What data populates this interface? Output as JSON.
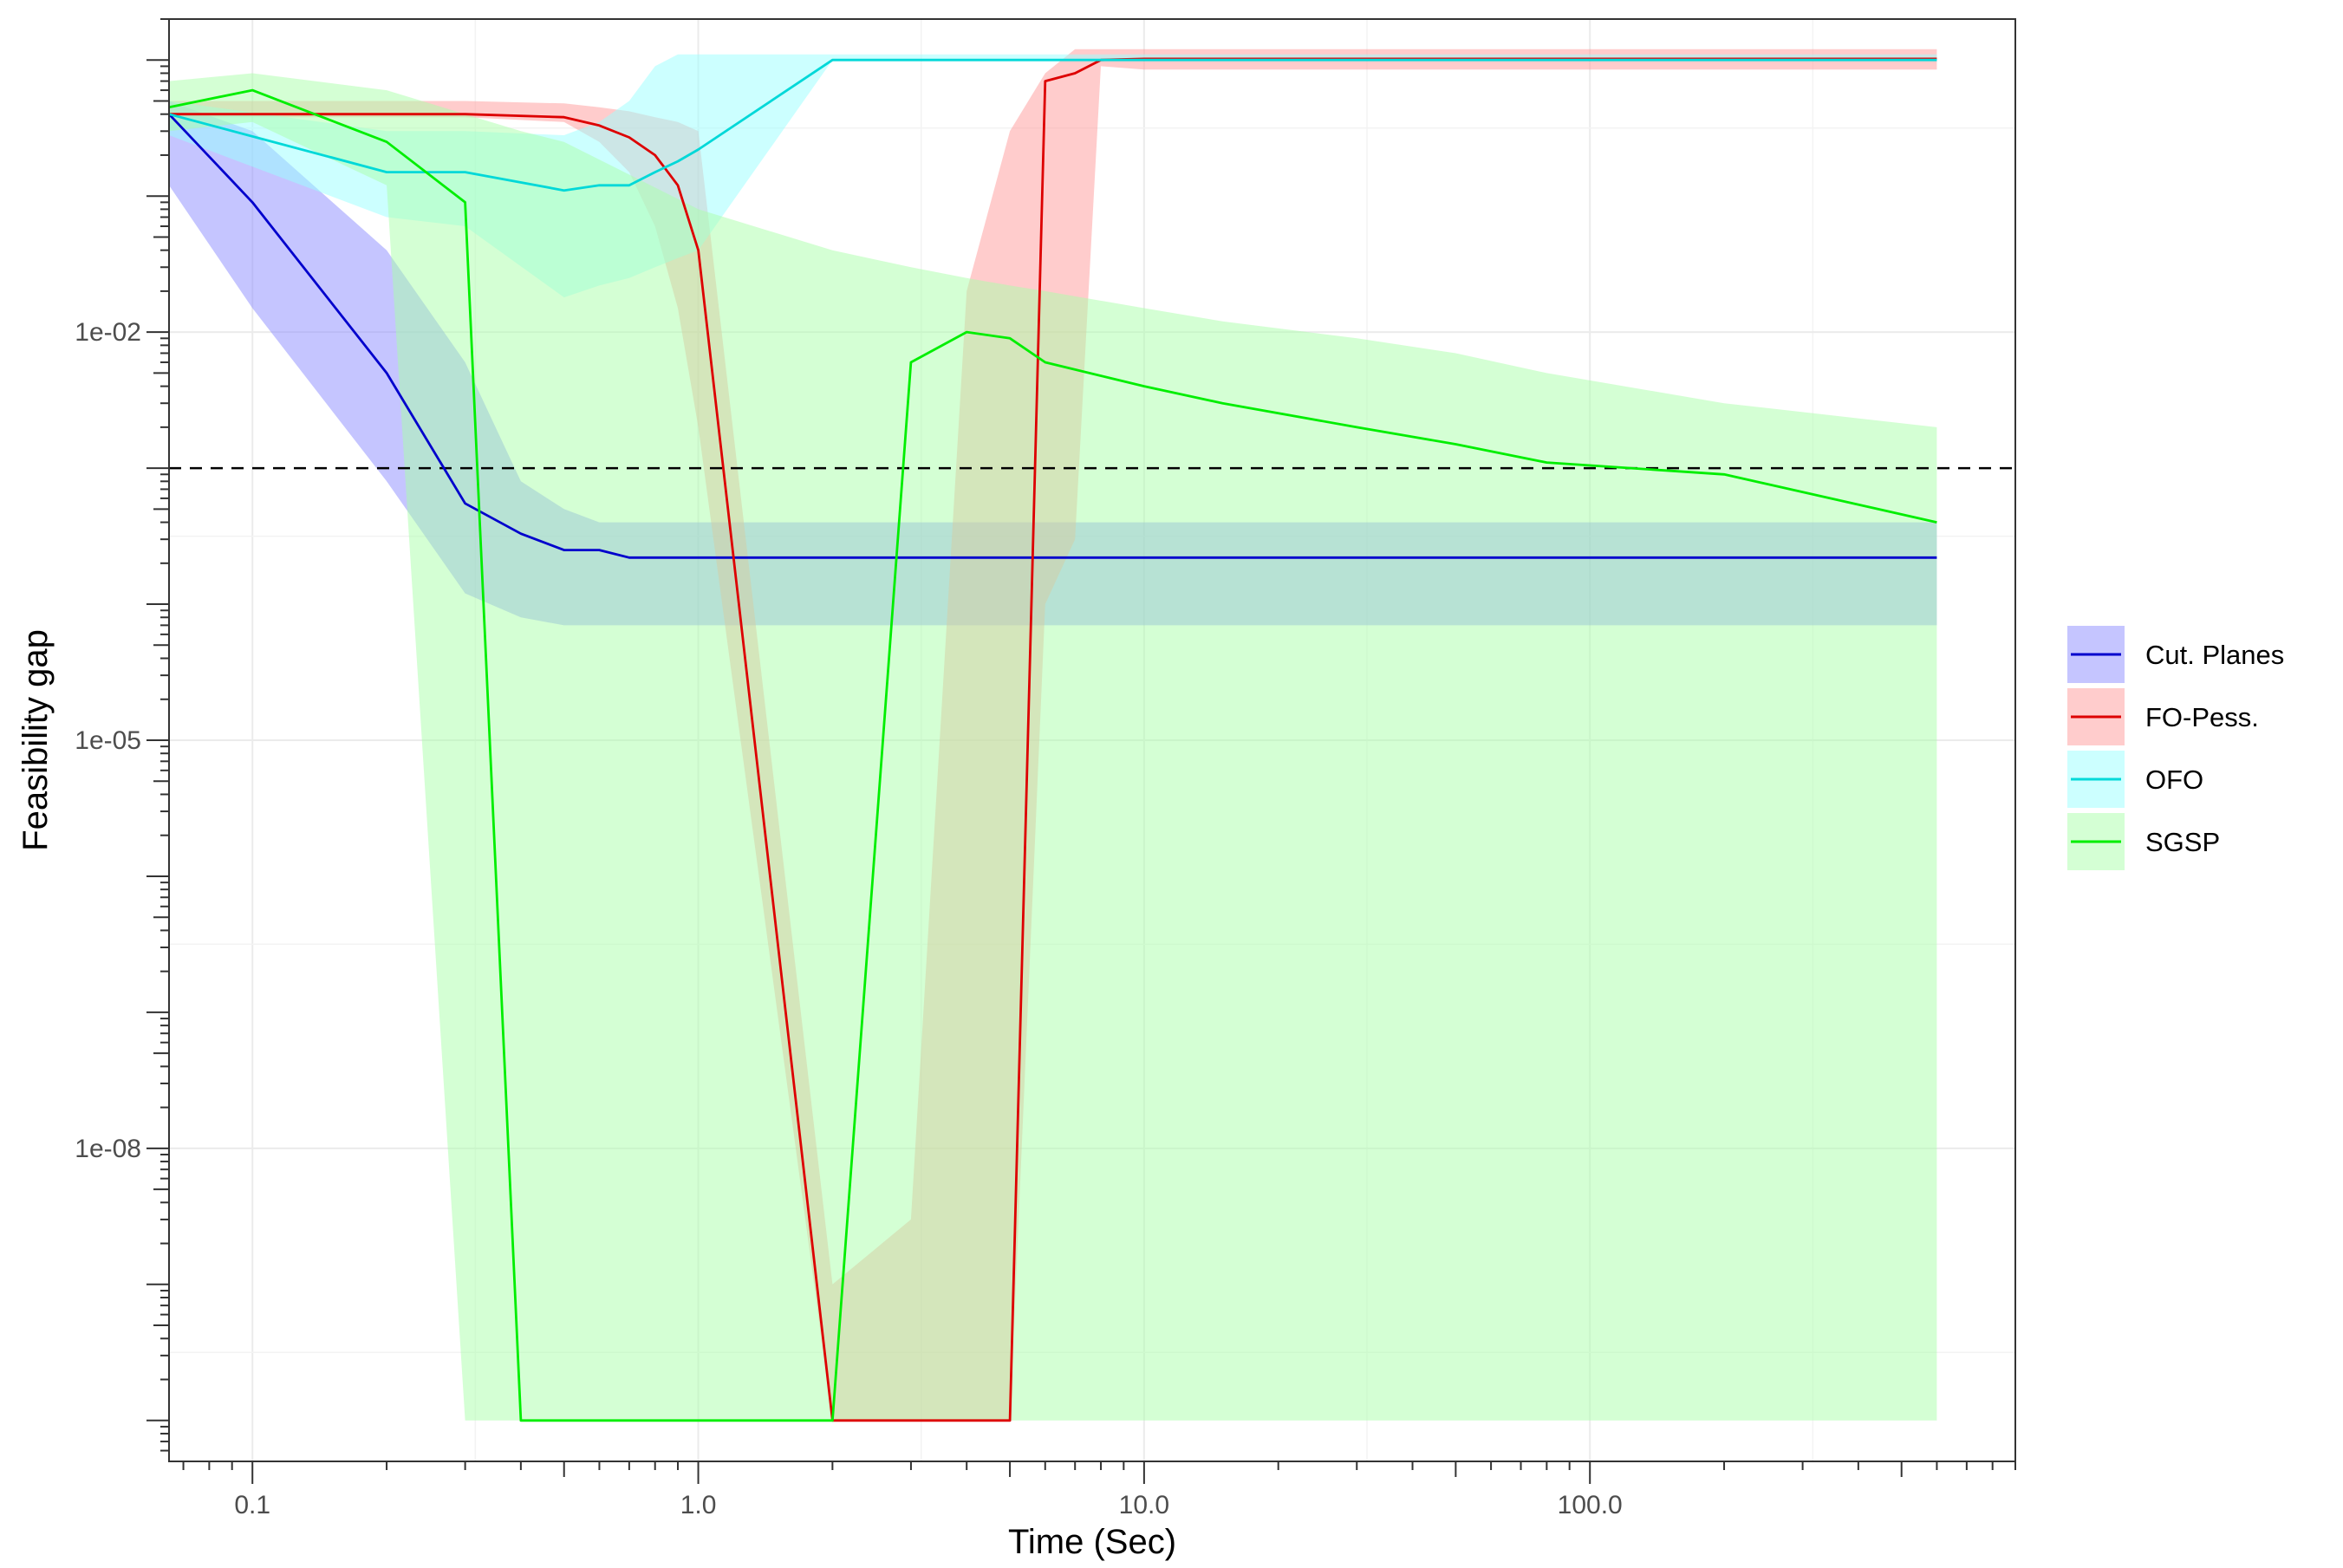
{
  "chart_data": {
    "type": "line",
    "title": "",
    "xlabel": "Time (Sec)",
    "ylabel": "Feasibility gap",
    "x_scale": "log10",
    "y_scale": "log10",
    "xlim": [
      0.065,
      900
    ],
    "ylim": [
      5e-11,
      2.0
    ],
    "x_ticks": [
      {
        "value": 0.1,
        "label": "0.1"
      },
      {
        "value": 1,
        "label": "1.0"
      },
      {
        "value": 10,
        "label": "10.0"
      },
      {
        "value": 100,
        "label": "100.0"
      }
    ],
    "y_ticks": [
      {
        "value": 0.01,
        "label": "1e-02"
      },
      {
        "value": 1e-05,
        "label": "1e-05"
      },
      {
        "value": 1e-08,
        "label": "1e-08"
      }
    ],
    "grid": true,
    "legend_position": "right",
    "reference_line": {
      "y": 0.001,
      "style": "dashed",
      "color": "#000000"
    },
    "series": [
      {
        "name": "Cut. Planes",
        "color": "#0000cc",
        "band_color": "#8c8cff",
        "x": [
          0.065,
          0.1,
          0.2,
          0.3,
          0.4,
          0.5,
          0.6,
          0.7,
          1,
          2,
          5,
          10,
          100,
          600
        ],
        "y": [
          0.4,
          0.09,
          0.005,
          0.00055,
          0.00033,
          0.00025,
          0.00025,
          0.00022,
          0.00022,
          0.00022,
          0.00022,
          0.00022,
          0.00022,
          0.00022
        ],
        "band_low": [
          0.12,
          0.015,
          0.0008,
          0.00012,
          8e-05,
          7e-05,
          7e-05,
          7e-05,
          7e-05,
          7e-05,
          7e-05,
          7e-05,
          7e-05,
          7e-05
        ],
        "band_high": [
          0.5,
          0.3,
          0.04,
          0.006,
          0.0008,
          0.0005,
          0.0004,
          0.0004,
          0.0004,
          0.0004,
          0.0004,
          0.0004,
          0.0004,
          0.0004
        ]
      },
      {
        "name": "FO-Pess.",
        "color": "#dd0000",
        "band_color": "#ff9999",
        "x": [
          0.065,
          0.3,
          0.5,
          0.6,
          0.7,
          0.8,
          0.9,
          1.0,
          2,
          3,
          4,
          5,
          6,
          7,
          8,
          10,
          100,
          600
        ],
        "y": [
          0.4,
          0.4,
          0.38,
          0.33,
          0.27,
          0.2,
          0.12,
          0.04,
          1e-10,
          1e-10,
          1e-10,
          1e-10,
          0.7,
          0.8,
          1.0,
          1.02,
          1.02,
          1.02
        ],
        "band_low": [
          0.38,
          0.38,
          0.35,
          0.25,
          0.15,
          0.06,
          0.015,
          0.002,
          1e-10,
          1e-10,
          1e-10,
          1e-10,
          0.0001,
          0.0003,
          0.9,
          0.85,
          0.85,
          0.85
        ],
        "band_high": [
          0.5,
          0.5,
          0.48,
          0.45,
          0.42,
          0.38,
          0.35,
          0.3,
          1e-09,
          3e-09,
          0.02,
          0.3,
          0.8,
          1.2,
          1.2,
          1.2,
          1.2,
          1.2
        ]
      },
      {
        "name": "OFO",
        "color": "#00d8d8",
        "band_color": "#99ffff",
        "x": [
          0.065,
          0.2,
          0.3,
          0.5,
          0.6,
          0.7,
          0.8,
          0.9,
          1.0,
          2,
          10,
          100,
          600
        ],
        "y": [
          0.4,
          0.15,
          0.15,
          0.11,
          0.12,
          0.12,
          0.15,
          0.18,
          0.22,
          1.0,
          1.0,
          1.0,
          1.0
        ],
        "band_low": [
          0.28,
          0.07,
          0.06,
          0.018,
          0.022,
          0.025,
          0.03,
          0.035,
          0.04,
          1.0,
          1.0,
          1.0,
          1.0
        ],
        "band_high": [
          0.5,
          0.3,
          0.3,
          0.28,
          0.35,
          0.5,
          0.9,
          1.1,
          1.1,
          1.1,
          1.1,
          1.1,
          1.1
        ]
      },
      {
        "name": "SGSP",
        "color": "#00ee00",
        "band_color": "#aaffaa",
        "x": [
          0.065,
          0.1,
          0.2,
          0.3,
          0.4,
          0.5,
          1,
          2,
          3,
          4,
          5,
          6,
          10,
          15,
          30,
          50,
          80,
          200,
          600
        ],
        "y": [
          0.45,
          0.6,
          0.25,
          0.09,
          1e-10,
          1e-10,
          1e-10,
          1e-10,
          0.006,
          0.01,
          0.009,
          0.006,
          0.004,
          0.003,
          0.002,
          0.0015,
          0.0011,
          0.0009,
          0.0004
        ],
        "band_low": [
          0.3,
          0.35,
          0.12,
          1e-10,
          1e-10,
          1e-10,
          1e-10,
          1e-10,
          1e-10,
          1e-10,
          1e-10,
          1e-10,
          1e-10,
          1e-10,
          1e-10,
          1e-10,
          1e-10,
          1e-10,
          1e-10
        ],
        "band_high": [
          0.7,
          0.8,
          0.6,
          0.4,
          0.3,
          0.25,
          0.08,
          0.04,
          0.03,
          0.025,
          0.022,
          0.02,
          0.015,
          0.012,
          0.009,
          0.007,
          0.005,
          0.003,
          0.002
        ]
      }
    ]
  }
}
